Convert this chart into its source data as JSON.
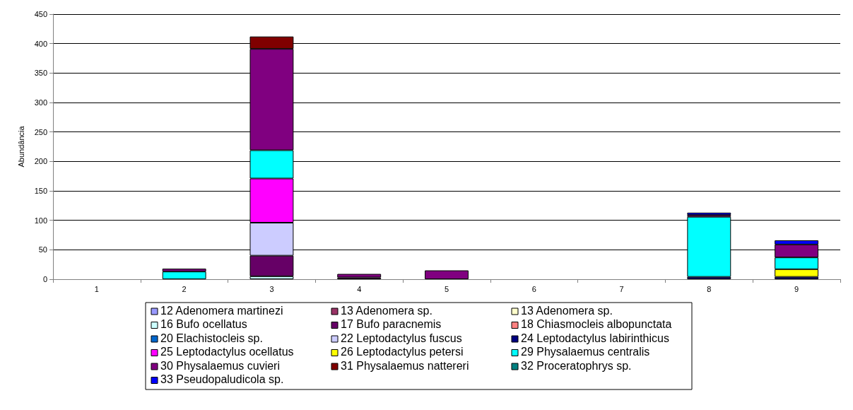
{
  "chart_data": {
    "type": "bar",
    "stacked": true,
    "ylabel": "Abundância",
    "categories": [
      "1",
      "2",
      "3",
      "4",
      "5",
      "6",
      "7",
      "8",
      "9"
    ],
    "ylim": [
      0,
      450
    ],
    "yticks": [
      0,
      50,
      100,
      150,
      200,
      250,
      300,
      350,
      400,
      450
    ],
    "grid": "y",
    "legend": "bottom",
    "series": [
      {
        "name": "12 Adenomera martinezi",
        "color": "#9999ff",
        "values": [
          null,
          null,
          null,
          null,
          null,
          null,
          null,
          null,
          null
        ]
      },
      {
        "name": "13 Adenomera sp.",
        "color": "#993366",
        "values": [
          null,
          null,
          null,
          null,
          null,
          null,
          null,
          null,
          null
        ]
      },
      {
        "name": "13 Adenomera sp.",
        "color": "#ffffcc",
        "values": [
          null,
          null,
          null,
          null,
          null,
          null,
          null,
          null,
          null
        ]
      },
      {
        "name": "16 Bufo ocellatus",
        "color": "#ccffff",
        "values": [
          null,
          null,
          5,
          null,
          null,
          null,
          null,
          null,
          null
        ]
      },
      {
        "name": "17 Bufo paracnemis",
        "color": "#660066",
        "values": [
          null,
          null,
          35,
          3,
          null,
          null,
          null,
          null,
          null
        ]
      },
      {
        "name": "18 Chiasmocleis albopunctata",
        "color": "#ff8080",
        "values": [
          null,
          null,
          null,
          null,
          null,
          null,
          null,
          null,
          null
        ]
      },
      {
        "name": "20 Elachistocleis sp.",
        "color": "#0066cc",
        "values": [
          null,
          null,
          null,
          null,
          null,
          null,
          null,
          null,
          null
        ]
      },
      {
        "name": "22 Leptodactylus fuscus",
        "color": "#ccccff",
        "values": [
          null,
          null,
          56,
          null,
          null,
          null,
          null,
          null,
          null
        ]
      },
      {
        "name": "24 Leptodactylus labirinthicus",
        "color": "#000080",
        "values": [
          null,
          null,
          null,
          null,
          null,
          null,
          null,
          4,
          4
        ]
      },
      {
        "name": "25 Leptodactylus ocellatus",
        "color": "#ff00ff",
        "values": [
          null,
          null,
          75,
          null,
          null,
          null,
          null,
          null,
          null
        ]
      },
      {
        "name": "26 Leptodactylus petersi",
        "color": "#ffff00",
        "values": [
          null,
          null,
          null,
          null,
          null,
          null,
          null,
          null,
          13
        ]
      },
      {
        "name": "29 Physalaemus centralis",
        "color": "#00ffff",
        "values": [
          null,
          13,
          48,
          null,
          null,
          null,
          null,
          102,
          20
        ]
      },
      {
        "name": "30 Physalaemus cuvieri",
        "color": "#800080",
        "values": [
          null,
          5,
          172,
          6,
          15,
          null,
          null,
          3,
          22
        ]
      },
      {
        "name": "31 Physalaemus nattereri",
        "color": "#800000",
        "values": [
          null,
          null,
          21,
          null,
          null,
          null,
          null,
          null,
          null
        ]
      },
      {
        "name": "32 Proceratophrys sp.",
        "color": "#008080",
        "values": [
          null,
          null,
          null,
          null,
          null,
          null,
          null,
          null,
          null
        ]
      },
      {
        "name": "33 Pseudopaludicola sp.",
        "color": "#0000ff",
        "values": [
          null,
          null,
          null,
          null,
          null,
          null,
          null,
          4,
          7
        ]
      }
    ]
  }
}
